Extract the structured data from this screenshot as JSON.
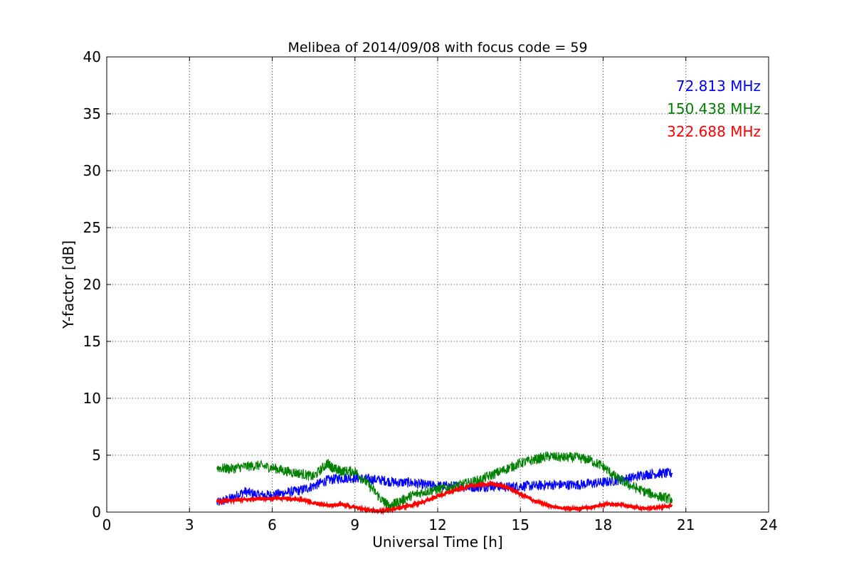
{
  "chart_data": {
    "type": "line",
    "title": "Melibea of 2014/09/08 with focus code = 59",
    "xlabel": "Universal Time [h]",
    "ylabel": "Y-factor [dB]",
    "xlim": [
      0,
      24
    ],
    "ylim": [
      0,
      40
    ],
    "xticks": [
      0,
      3,
      6,
      9,
      12,
      15,
      18,
      21,
      24
    ],
    "yticks": [
      0,
      5,
      10,
      15,
      20,
      25,
      30,
      35,
      40
    ],
    "grid": true,
    "legend_placement": "top-right",
    "series": [
      {
        "name": "72.813 MHz",
        "color": "#0000ff",
        "noise": 0.9,
        "x": [
          4.0,
          4.5,
          5.0,
          5.5,
          6.0,
          6.5,
          7.0,
          7.5,
          8.0,
          8.5,
          9.0,
          9.5,
          10.0,
          10.5,
          11.0,
          11.5,
          12.0,
          12.5,
          13.0,
          13.5,
          14.0,
          14.5,
          15.0,
          15.5,
          16.0,
          16.5,
          17.0,
          17.5,
          18.0,
          18.5,
          19.0,
          19.5,
          20.0,
          20.5
        ],
        "y": [
          0.8,
          1.2,
          1.8,
          1.5,
          1.5,
          1.7,
          1.9,
          2.3,
          2.8,
          3.0,
          3.0,
          2.9,
          2.8,
          2.6,
          2.6,
          2.4,
          2.3,
          2.3,
          2.2,
          2.2,
          2.3,
          2.2,
          2.3,
          2.3,
          2.4,
          2.4,
          2.4,
          2.5,
          2.6,
          2.8,
          3.0,
          3.3,
          3.4,
          3.4
        ]
      },
      {
        "name": "150.438 MHz",
        "color": "#008000",
        "noise": 0.9,
        "x": [
          4.0,
          4.5,
          5.0,
          5.5,
          6.0,
          6.5,
          7.0,
          7.5,
          8.0,
          8.25,
          8.5,
          9.0,
          9.5,
          10.0,
          10.25,
          10.5,
          11.0,
          11.5,
          12.0,
          12.5,
          13.0,
          13.5,
          14.0,
          14.5,
          15.0,
          15.5,
          16.0,
          16.5,
          17.0,
          17.5,
          18.0,
          18.5,
          19.0,
          19.5,
          20.0,
          20.5
        ],
        "y": [
          3.9,
          3.8,
          4.0,
          4.1,
          3.9,
          3.6,
          3.4,
          3.1,
          4.3,
          3.8,
          3.6,
          3.6,
          2.4,
          1.0,
          0.5,
          0.8,
          1.4,
          1.8,
          2.0,
          2.2,
          2.5,
          2.8,
          3.3,
          3.8,
          4.3,
          4.6,
          4.9,
          4.8,
          4.8,
          4.6,
          4.0,
          3.0,
          2.3,
          1.8,
          1.4,
          1.1
        ]
      },
      {
        "name": "322.688 MHz",
        "color": "#ff0000",
        "noise": 0.25,
        "x": [
          4.0,
          4.5,
          5.0,
          5.5,
          6.0,
          6.5,
          7.0,
          7.5,
          8.0,
          8.5,
          9.0,
          9.5,
          10.0,
          10.5,
          11.0,
          11.5,
          12.0,
          12.5,
          13.0,
          13.5,
          14.0,
          14.5,
          15.0,
          15.5,
          16.0,
          16.5,
          17.0,
          17.5,
          18.0,
          18.5,
          19.0,
          19.5,
          20.0,
          20.5
        ],
        "y": [
          0.9,
          1.0,
          1.1,
          1.2,
          1.2,
          1.2,
          1.1,
          0.8,
          0.6,
          0.7,
          0.4,
          0.2,
          0.1,
          0.3,
          0.6,
          0.9,
          1.4,
          1.8,
          2.2,
          2.4,
          2.5,
          2.2,
          1.6,
          1.0,
          0.6,
          0.35,
          0.3,
          0.4,
          0.7,
          0.7,
          0.5,
          0.3,
          0.4,
          0.6
        ]
      }
    ]
  }
}
